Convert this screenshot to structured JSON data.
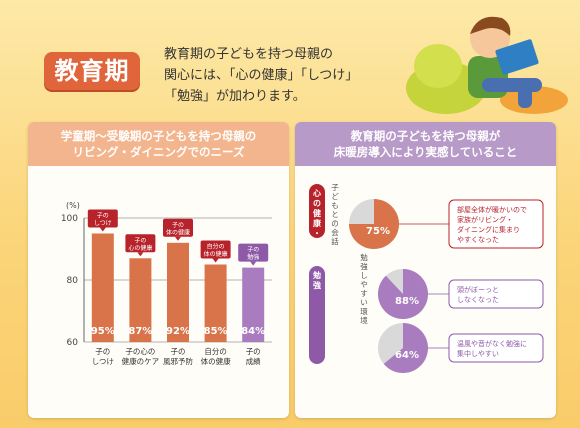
{
  "header": {
    "badge": "教育期",
    "intro_lines": [
      "教育期の子どもを持つ母親の",
      "関心には、「心の健康」「しつけ」",
      "「勉強」が加わります。"
    ]
  },
  "left_panel": {
    "title_lines": [
      "学童期～受験期の子どもを持つ母親の",
      "リビング・ダイニングでのニーズ"
    ]
  },
  "right_panel": {
    "title_lines": [
      "教育期の子どもを持つ母親が",
      "床暖房導入により実感していること"
    ]
  },
  "colors": {
    "bar_orange": "#d9734a",
    "bar_purple": "#a97cc0",
    "pie_grey": "#d9d9d9",
    "tag_red": "#b8232b",
    "tag_purple": "#8e5aa8"
  },
  "chart_data": [
    {
      "type": "bar",
      "categories": [
        "子の\nしつけ",
        "子の心の\n健康のケア",
        "子の\n風邪予防",
        "自分の\n体の健康",
        "子の\n成績"
      ],
      "category_lines": [
        [
          "子の",
          "しつけ"
        ],
        [
          "子の心の",
          "健康のケア"
        ],
        [
          "子の",
          "風邪予防"
        ],
        [
          "自分の",
          "体の健康"
        ],
        [
          "子の",
          "成績"
        ]
      ],
      "values": [
        95,
        87,
        92,
        85,
        84
      ],
      "value_labels": [
        "95%",
        "87%",
        "92%",
        "85%",
        "84%"
      ],
      "bar_colors": [
        "#d9734a",
        "#d9734a",
        "#d9734a",
        "#d9734a",
        "#a97cc0"
      ],
      "callouts": [
        [
          "子の",
          "しつけ"
        ],
        [
          "子の",
          "心の健康"
        ],
        [
          "子の",
          "体の健康"
        ],
        [
          "自分の",
          "体の健康"
        ],
        [
          "子の",
          "勉強"
        ]
      ],
      "callout_colors": [
        "#b8232b",
        "#b8232b",
        "#b8232b",
        "#b8232b",
        "#8e5aa8"
      ],
      "ylabel": "(%)",
      "ylim": [
        60,
        100
      ],
      "yticks": [
        "100",
        "80",
        "60"
      ],
      "ytick_values": [
        100,
        80,
        60
      ],
      "grid": true
    },
    {
      "type": "pie",
      "items": [
        {
          "group_label": "心の健康・しつけ",
          "side_label": "子どもとの会話",
          "value": 75,
          "value_label": "75%",
          "color": "#d9734a",
          "note_lines": [
            "部屋全体が暖かいので",
            "家族がリビング・",
            "ダイニングに集まり",
            "やすくなった"
          ]
        },
        {
          "group_label": "勉強",
          "side_label": "勉強しやすい環境",
          "value": 88,
          "value_label": "88%",
          "color": "#a97cc0",
          "note_lines": [
            "頭がぼーっと",
            "しなくなった"
          ]
        },
        {
          "group_label": "",
          "side_label": "",
          "value": 64,
          "value_label": "64%",
          "color": "#a97cc0",
          "note_lines": [
            "温風や音がなく勉強に",
            "集中しやすい"
          ]
        }
      ]
    }
  ]
}
